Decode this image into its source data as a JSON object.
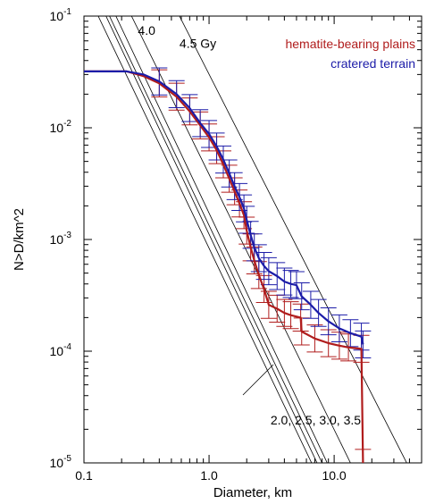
{
  "chart_data": {
    "type": "line",
    "xlabel": "Diameter, km",
    "ylabel": "N>D/km^2",
    "xscale": "log",
    "yscale": "log",
    "xlim": [
      0.1,
      50
    ],
    "ylim": [
      1e-05,
      0.1
    ],
    "x_tick_labels": [
      {
        "value": 0.1,
        "label": "0.1"
      },
      {
        "value": 1.0,
        "label": "1.0"
      },
      {
        "value": 10.0,
        "label": "10.0"
      }
    ],
    "y_tick_labels": [
      {
        "value": 1e-05,
        "base": "10",
        "exp": "-5"
      },
      {
        "value": 0.0001,
        "base": "10",
        "exp": "-4"
      },
      {
        "value": 0.001,
        "base": "10",
        "exp": "-3"
      },
      {
        "value": 0.01,
        "base": "10",
        "exp": "-2"
      },
      {
        "value": 0.1,
        "base": "10",
        "exp": "-1"
      }
    ],
    "legend_position": "top-right",
    "grid": false,
    "series": [
      {
        "name": "hematite-bearing plains",
        "color": "#b01c1c",
        "x": [
          0.1,
          0.22,
          0.3,
          0.4,
          0.55,
          0.7,
          0.85,
          1.0,
          1.15,
          1.3,
          1.45,
          1.6,
          1.75,
          1.9,
          2.0,
          2.15,
          2.3,
          2.5,
          2.75,
          3.0,
          3.5,
          4.0,
          4.5,
          5.4,
          5.5,
          7.0,
          9.0,
          11.0,
          13.0,
          16.5,
          17.0
        ],
        "y": [
          0.032,
          0.032,
          0.029,
          0.025,
          0.019,
          0.014,
          0.0105,
          0.0082,
          0.0063,
          0.0047,
          0.0035,
          0.0027,
          0.0021,
          0.00165,
          0.0012,
          0.00085,
          0.00065,
          0.00048,
          0.00036,
          0.00026,
          0.00024,
          0.00022,
          0.00021,
          0.0002,
          0.00015,
          0.00013,
          0.000118,
          0.000112,
          0.000108,
          0.000105,
          1e-05
        ]
      },
      {
        "name": "cratered terrain",
        "color": "#1c1ca8",
        "x": [
          0.1,
          0.22,
          0.3,
          0.4,
          0.55,
          0.7,
          0.85,
          1.0,
          1.15,
          1.3,
          1.45,
          1.6,
          1.75,
          1.9,
          2.0,
          2.15,
          2.3,
          2.5,
          2.75,
          3.0,
          3.5,
          4.0,
          4.5,
          5.0,
          5.5,
          6.5,
          7.5,
          9.0,
          11.0,
          13.5,
          16.5,
          17.0
        ],
        "y": [
          0.032,
          0.032,
          0.03,
          0.026,
          0.02,
          0.015,
          0.011,
          0.0088,
          0.0068,
          0.0052,
          0.0039,
          0.003,
          0.0024,
          0.0019,
          0.0015,
          0.0011,
          0.00085,
          0.00068,
          0.00058,
          0.00052,
          0.00047,
          0.00042,
          0.0004,
          0.00039,
          0.00031,
          0.00026,
          0.00022,
          0.000185,
          0.00016,
          0.000145,
          0.000135,
          0.000115
        ]
      }
    ],
    "isochrons": [
      {
        "x1": 0.13,
        "y1": 0.1,
        "x2": 6.6,
        "y2": 1e-05
      },
      {
        "x1": 0.15,
        "y1": 0.1,
        "x2": 7.3,
        "y2": 1e-05
      },
      {
        "x1": 0.16,
        "y1": 0.1,
        "x2": 8.0,
        "y2": 1e-05
      },
      {
        "x1": 0.18,
        "y1": 0.1,
        "x2": 8.8,
        "y2": 1e-05
      },
      {
        "x1": 0.24,
        "y1": 0.1,
        "x2": 13.5,
        "y2": 1e-05
      },
      {
        "x1": 0.58,
        "y1": 0.1,
        "x2": 38.0,
        "y2": 1e-05
      }
    ],
    "annotations": [
      {
        "text": "4.0",
        "x": 0.27,
        "y": 0.068
      },
      {
        "text": "4.5 Gy",
        "x": 0.58,
        "y": 0.052
      },
      {
        "text": "2.0, 2.5, 3.0, 3.5",
        "x": 3.1,
        "y": 2.2e-05
      }
    ]
  }
}
